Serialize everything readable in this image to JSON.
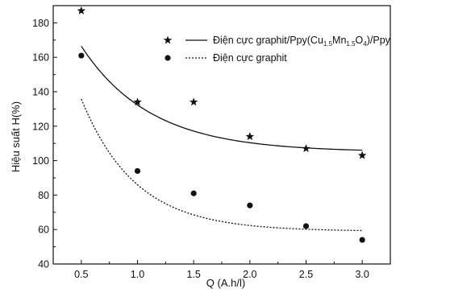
{
  "chart_data": {
    "type": "scatter",
    "title": "",
    "xlabel": "Q (A.h/l)",
    "ylabel": "Hiệu suất H(%)",
    "xlim": [
      0.25,
      3.25
    ],
    "ylim": [
      40,
      190
    ],
    "xticks": [
      0.5,
      1.0,
      1.5,
      2.0,
      2.5,
      3.0
    ],
    "xtick_labels": [
      "0.5",
      "1.0",
      "1.5",
      "2.0",
      "2.5",
      "3.0"
    ],
    "yticks": [
      40,
      60,
      80,
      100,
      120,
      140,
      160,
      180
    ],
    "ytick_labels": [
      "40",
      "60",
      "80",
      "100",
      "120",
      "140",
      "160",
      "180"
    ],
    "grid": false,
    "legend_position": "top-right",
    "series": [
      {
        "name_prefix": "Điện cực graphit/Ppy(Cu",
        "name_sub1": "1.5",
        "name_mid": "Mn",
        "name_sub2": "1.5",
        "name_mid2": "O",
        "name_sub3": "4",
        "name_suffix": ")/Ppy",
        "marker": "star",
        "line": "solid",
        "x": [
          0.5,
          1.0,
          1.5,
          2.0,
          2.5,
          3.0
        ],
        "y": [
          187,
          134,
          134,
          114,
          107,
          103
        ],
        "fit": {
          "base": 105,
          "amp": 138.1,
          "rate": 1.62
        }
      },
      {
        "name": "Điện cực graphit",
        "marker": "circle",
        "line": "dotted",
        "x": [
          0.5,
          1.0,
          1.5,
          2.0,
          2.5,
          3.0
        ],
        "y": [
          161,
          94,
          81,
          74,
          62,
          54
        ],
        "fit": {
          "base": 59,
          "amp": 218.4,
          "rate": 2.09
        }
      }
    ]
  }
}
